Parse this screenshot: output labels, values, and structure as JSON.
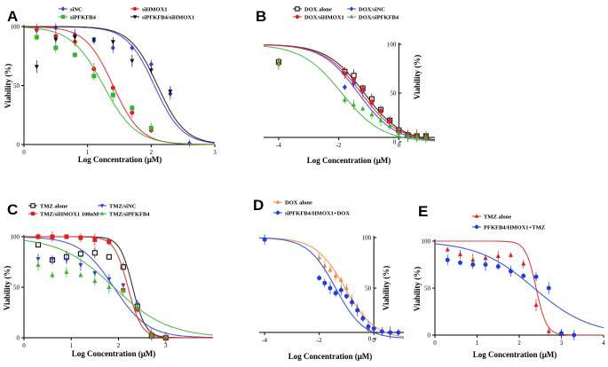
{
  "chart_data": [
    {
      "type": "scatter",
      "panel": "A",
      "xlabel": "Log Concentration (μM)",
      "ylabel": "Viability (%)",
      "xlim": [
        0,
        3
      ],
      "ylim": [
        0,
        100
      ],
      "xticks": [
        0,
        1,
        2,
        3
      ],
      "yticks": [
        0,
        50,
        100
      ],
      "series": [
        {
          "name": "siNC",
          "color": "#3a3ad6",
          "marker": "diamond",
          "x": [
            0.2,
            0.5,
            0.8,
            1.1,
            1.4,
            1.7,
            2.0,
            2.3,
            2.6
          ],
          "y": [
            97,
            99,
            93,
            88,
            82,
            82,
            68,
            43,
            1
          ],
          "ic50": 2.05,
          "slope": 2.0
        },
        {
          "name": "siHMOX1",
          "color": "#e02020",
          "marker": "circle",
          "x": [
            0.2,
            0.5,
            0.8,
            1.1,
            1.4,
            1.7,
            2.0
          ],
          "y": [
            98,
            92,
            87,
            64,
            48,
            27,
            12
          ],
          "ic50": 1.4,
          "slope": 2.0
        },
        {
          "name": "siPFKFB4",
          "color": "#33b533",
          "marker": "square",
          "x": [
            0.2,
            0.5,
            0.8,
            1.1,
            1.4,
            1.7,
            2.0
          ],
          "y": [
            91,
            82,
            76,
            58,
            42,
            31,
            14
          ],
          "ic50": 1.25,
          "slope": 1.7
        },
        {
          "name": "siPFKFB4/siHMOX1",
          "color": "#111111",
          "marker": "triangle-down",
          "x": [
            0.2,
            0.5,
            0.8,
            1.1,
            1.4,
            1.7,
            2.0,
            2.3
          ],
          "y": [
            66,
            89,
            91,
            89,
            87,
            71,
            63,
            45
          ],
          "ic50": 2.1,
          "slope": 2.0
        }
      ]
    },
    {
      "type": "scatter",
      "panel": "B",
      "xlabel": "Log Concentration (μM)",
      "ylabel": "Viability (%)",
      "xlim": [
        -4.5,
        1.2
      ],
      "ylim": [
        0,
        100
      ],
      "xticks": [
        -4,
        -2,
        0
      ],
      "yticks": [
        0,
        50,
        100
      ],
      "series": [
        {
          "name": "DOX alone",
          "color": "#111111",
          "marker": "square-open",
          "x": [
            -4,
            -1.8,
            -1.5,
            -1.2,
            -0.9,
            -0.6,
            -0.3,
            0.0,
            0.3,
            0.6,
            0.9
          ],
          "y": [
            82,
            72,
            68,
            55,
            44,
            33,
            22,
            12,
            7,
            6,
            6
          ],
          "ic50": -1.15,
          "slope": 0.7
        },
        {
          "name": "DOX/siNC",
          "color": "#3a3ad6",
          "marker": "diamond",
          "x": [
            -4,
            -1.8,
            -1.5,
            -1.2,
            -0.9,
            -0.6,
            -0.3,
            0.0,
            0.3,
            0.6,
            0.9
          ],
          "y": [
            81,
            56,
            60,
            52,
            40,
            32,
            22,
            10,
            6,
            6,
            5
          ],
          "ic50": -1.35,
          "slope": 0.72
        },
        {
          "name": "DOX/siHMOX1",
          "color": "#e02020",
          "marker": "circle",
          "x": [
            -4,
            -1.8,
            -1.5,
            -1.2,
            -0.9,
            -0.6,
            -0.3,
            0.0,
            0.3,
            0.6,
            0.9
          ],
          "y": [
            80,
            70,
            64,
            54,
            41,
            31,
            21,
            11,
            7,
            6,
            6
          ],
          "ic50": -1.25,
          "slope": 0.7
        },
        {
          "name": "DOX/siPFKFB4",
          "color": "#33b533",
          "marker": "triangle",
          "x": [
            -4,
            -1.8,
            -1.5,
            -1.2,
            -0.9,
            -0.6,
            -0.3,
            0.0,
            0.3,
            0.6,
            0.9
          ],
          "y": [
            80,
            43,
            38,
            34,
            28,
            22,
            16,
            9,
            6,
            5,
            5
          ],
          "ic50": -1.9,
          "slope": 0.65
        }
      ]
    },
    {
      "type": "scatter",
      "panel": "C",
      "xlabel": "Log Concentration (μM)",
      "ylabel": "Viability (%)",
      "xlim": [
        0,
        4
      ],
      "ylim": [
        0,
        100
      ],
      "xticks": [
        0,
        1,
        2,
        3
      ],
      "yticks": [
        0,
        50,
        100
      ],
      "series": [
        {
          "name": "TMZ alone",
          "color": "#111111",
          "marker": "square-open",
          "x": [
            0.3,
            0.6,
            0.9,
            1.2,
            1.5,
            1.8,
            2.1,
            2.4,
            2.7,
            3.0
          ],
          "y": [
            92,
            77,
            80,
            83,
            84,
            80,
            70,
            31,
            2,
            0
          ],
          "ic50": 2.3,
          "slope": 3.2
        },
        {
          "name": "TMZ/siNC",
          "color": "#3a3ad6",
          "marker": "triangle-down",
          "x": [
            0.3,
            0.6,
            0.9,
            1.2,
            1.5,
            1.8,
            2.1,
            2.4,
            2.7,
            3.0
          ],
          "y": [
            78,
            78,
            77,
            72,
            64,
            58,
            52,
            33,
            3,
            1
          ],
          "ic50": 1.9,
          "slope": 1.2
        },
        {
          "name": "TMZ/siHMOX1 100nM",
          "color": "#e02020",
          "marker": "square",
          "x": [
            0.3,
            0.6,
            0.9,
            1.2,
            1.5,
            1.8,
            2.1,
            2.4,
            2.7,
            3.0
          ],
          "y": [
            100,
            100,
            100,
            99,
            97,
            95,
            47,
            28,
            3,
            0
          ],
          "ic50": 2.2,
          "slope": 3.0
        },
        {
          "name": "TMZ/siPFKFB4",
          "color": "#33b533",
          "marker": "triangle",
          "x": [
            0.3,
            0.6,
            0.9,
            1.2,
            1.5,
            1.8,
            2.1,
            2.4,
            2.7,
            3.0
          ],
          "y": [
            72,
            62,
            65,
            62,
            56,
            50,
            47,
            30,
            3,
            1
          ],
          "ic50": 1.9,
          "slope": 0.75
        }
      ]
    },
    {
      "type": "scatter",
      "panel": "D",
      "xlabel": "Log Concentration (μM)",
      "ylabel": "Viability (%)",
      "xlim": [
        -4.2,
        1.1
      ],
      "ylim": [
        0,
        100
      ],
      "xticks": [
        -4,
        -2,
        0
      ],
      "yticks": [
        0,
        50,
        100
      ],
      "series": [
        {
          "name": "DOX alone",
          "color": "#f08a3c",
          "marker": "triangle",
          "x": [
            -4,
            -2.0,
            -1.8,
            -1.6,
            -1.4,
            -1.2,
            -1.0,
            -0.8,
            -0.6,
            -0.4,
            -0.2
          ],
          "y": [
            99,
            80,
            72,
            68,
            62,
            58,
            50,
            38,
            30,
            22,
            10
          ],
          "ic50": -1.05,
          "slope": 0.8
        },
        {
          "name": "siPFKFB4/HMOX1+DOX",
          "color": "#1f3fdc",
          "marker": "circle",
          "x": [
            -4,
            -2.0,
            -1.8,
            -1.6,
            -1.4,
            -1.2,
            -1.0,
            -0.8,
            -0.6,
            -0.4,
            -0.2,
            0.0,
            0.3,
            0.6,
            0.9
          ],
          "y": [
            98,
            60,
            55,
            50,
            45,
            48,
            42,
            36,
            28,
            20,
            12,
            10,
            7,
            6,
            6
          ],
          "ic50": -1.4,
          "slope": 0.85
        }
      ]
    },
    {
      "type": "scatter",
      "panel": "E",
      "xlabel": "Log Concentration (μM)",
      "ylabel": "Viability (%)",
      "xlim": [
        0,
        4
      ],
      "ylim": [
        0,
        100
      ],
      "xticks": [
        0,
        1,
        2,
        3,
        4
      ],
      "yticks": [
        0,
        50,
        100
      ],
      "series": [
        {
          "name": "TMZ alone",
          "color": "#e02020",
          "marker": "triangle",
          "x": [
            0.3,
            0.6,
            0.9,
            1.2,
            1.5,
            1.8,
            2.1,
            2.4,
            2.7,
            3.0
          ],
          "y": [
            91,
            86,
            80,
            82,
            84,
            85,
            76,
            32,
            4,
            1
          ],
          "ic50": 2.4,
          "slope": 3.5
        },
        {
          "name": "PFKFB4/HMOX1+TMZ",
          "color": "#1f3fdc",
          "marker": "circle",
          "x": [
            0.3,
            0.6,
            0.9,
            1.2,
            1.5,
            1.8,
            2.1,
            2.4,
            2.7,
            3.0,
            3.3
          ],
          "y": [
            80,
            77,
            75,
            75,
            73,
            68,
            63,
            62,
            50,
            2,
            0
          ],
          "ic50": 2.35,
          "slope": 0.65
        }
      ]
    }
  ],
  "panels": [
    {
      "id": "A",
      "label": "A"
    },
    {
      "id": "B",
      "label": "B"
    },
    {
      "id": "C",
      "label": "C"
    },
    {
      "id": "D",
      "label": "D"
    },
    {
      "id": "E",
      "label": "E"
    }
  ]
}
